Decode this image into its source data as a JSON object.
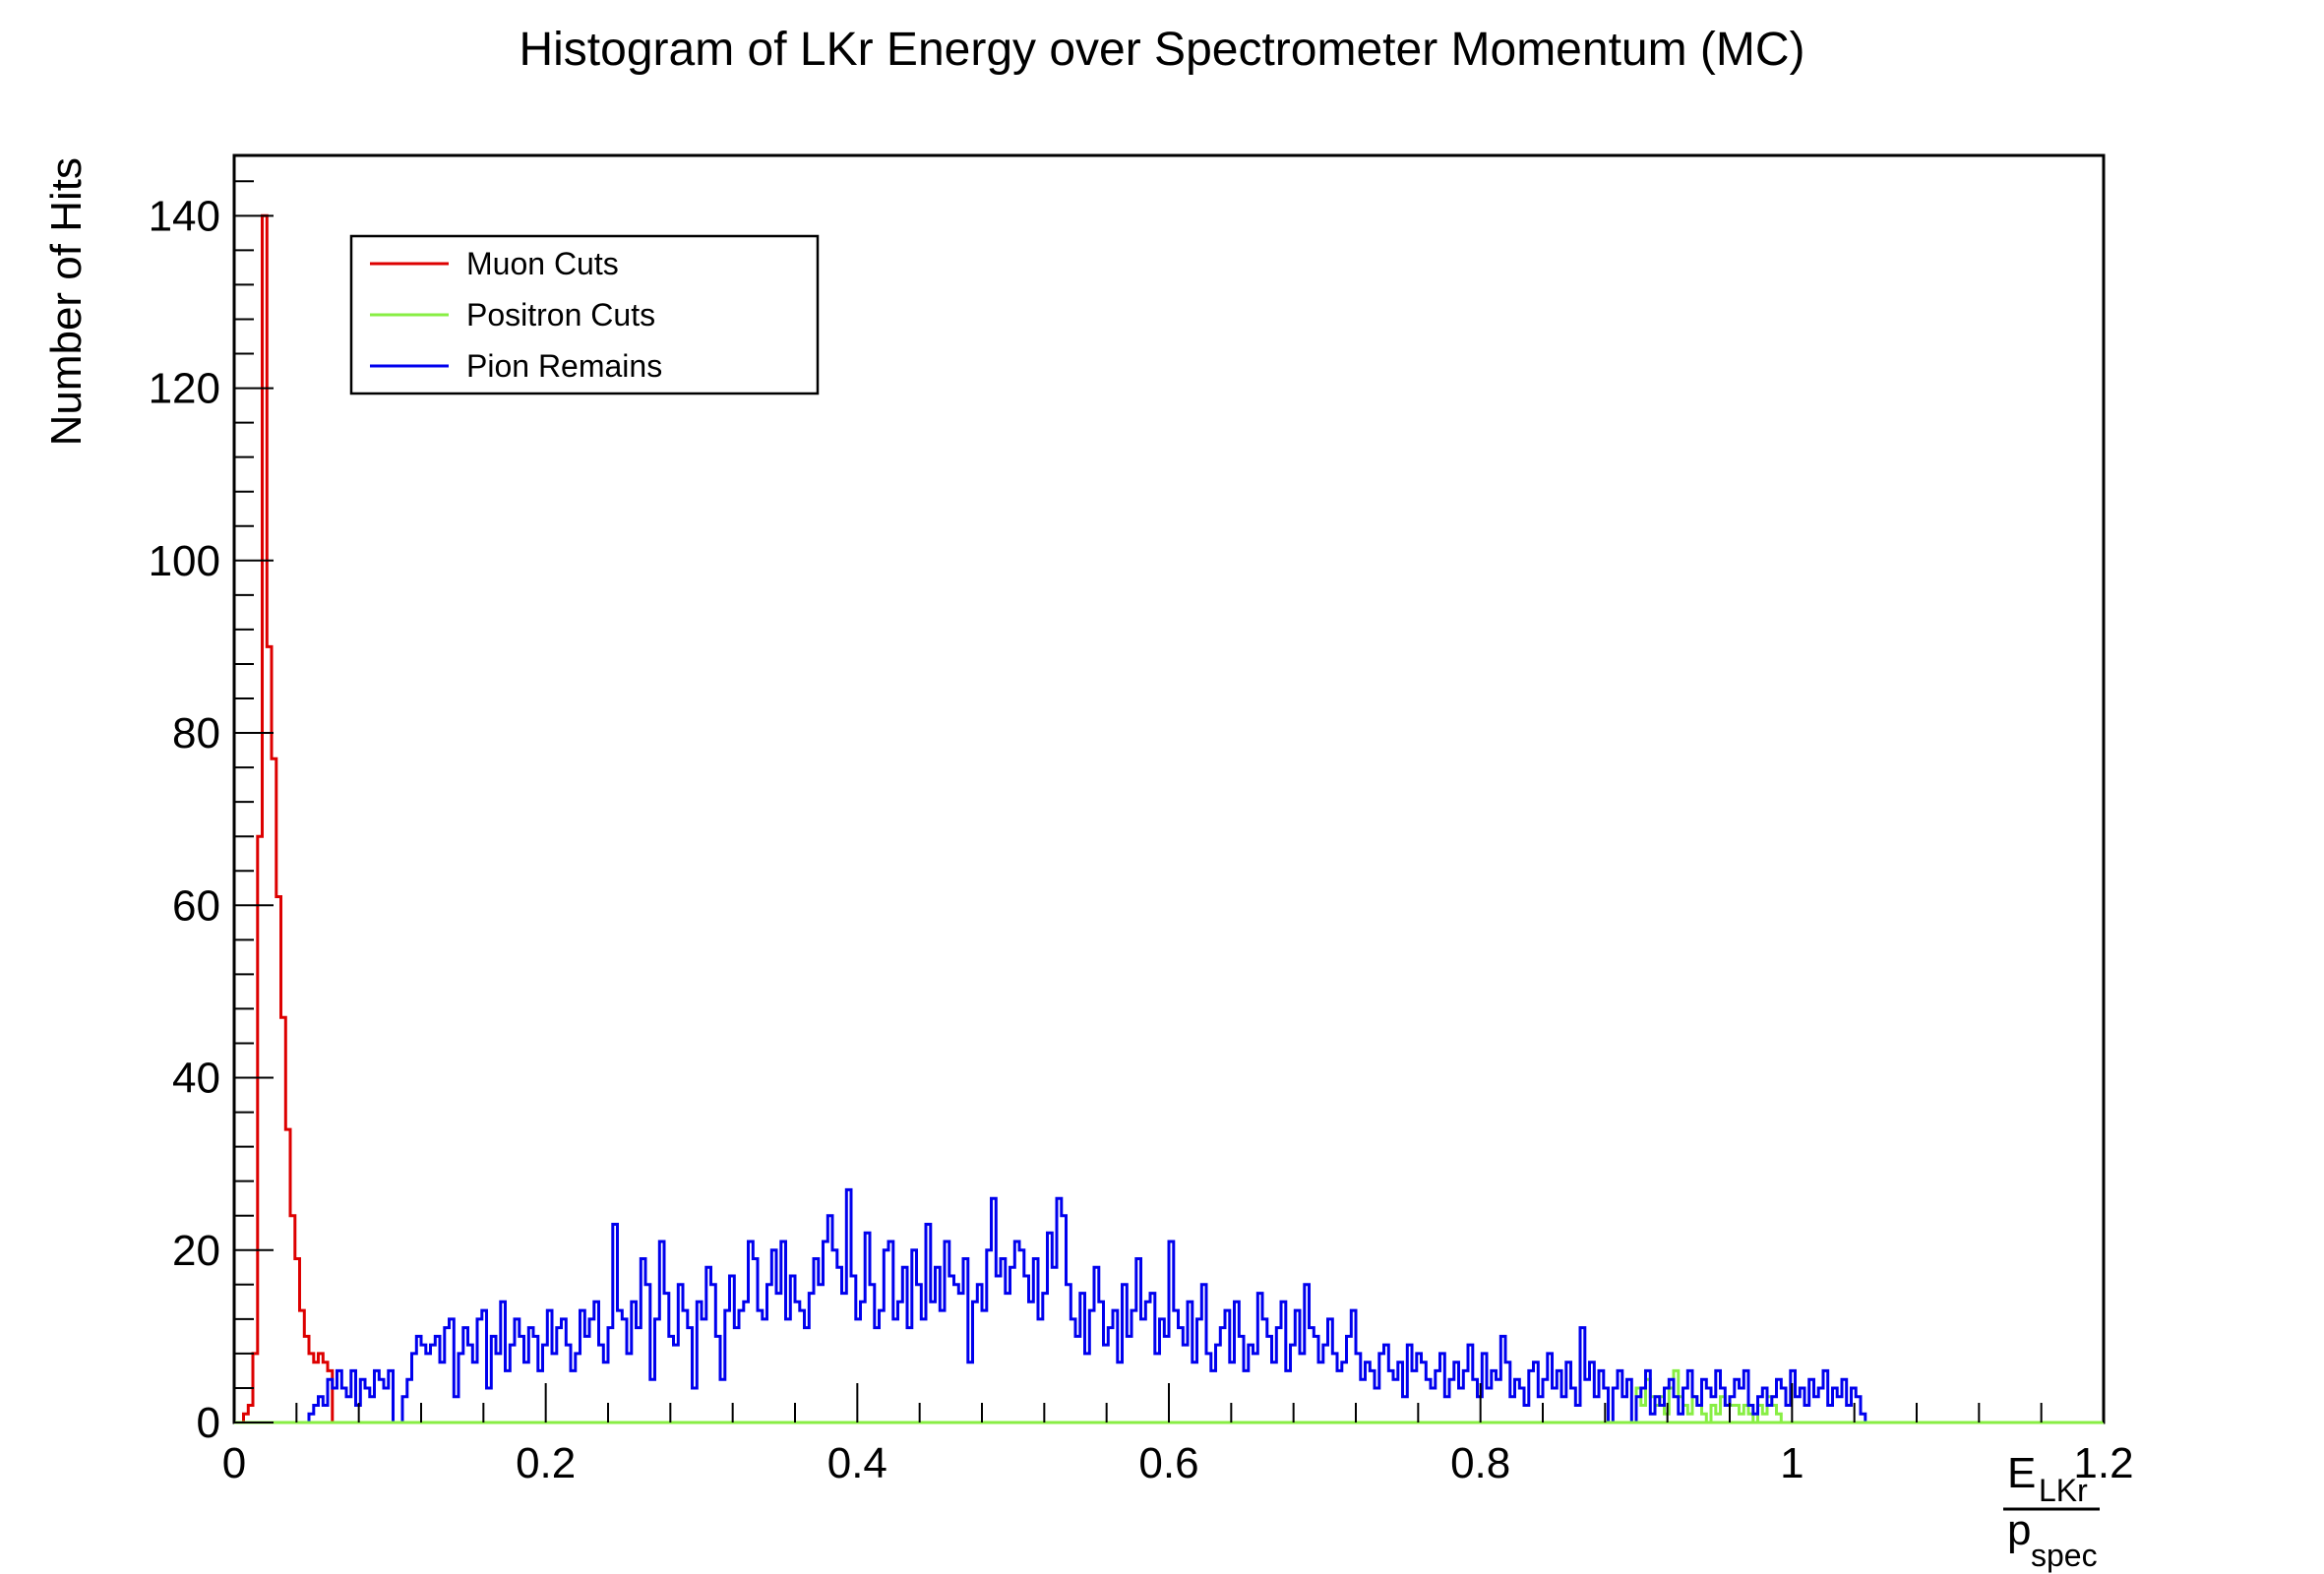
{
  "chart_data": {
    "type": "histogram",
    "title": "Histogram of LKr Energy over Spectrometer Momentum (MC)",
    "ylabel": "Number of Hits",
    "xlabel": {
      "numerator": "E",
      "numerator_sub": "LKr",
      "denominator": "p",
      "denominator_sub": "spec"
    },
    "xlim": [
      0,
      1.2
    ],
    "ylim": [
      0,
      147
    ],
    "x_ticks": [
      {
        "value": 0,
        "label": "0"
      },
      {
        "value": 0.2,
        "label": "0.2"
      },
      {
        "value": 0.4,
        "label": "0.4"
      },
      {
        "value": 0.6,
        "label": "0.6"
      },
      {
        "value": 0.8,
        "label": "0.8"
      },
      {
        "value": 1.0,
        "label": "1"
      },
      {
        "value": 1.2,
        "label": "1.2"
      }
    ],
    "y_ticks": [
      {
        "value": 0,
        "label": "0"
      },
      {
        "value": 20,
        "label": "20"
      },
      {
        "value": 40,
        "label": "40"
      },
      {
        "value": 60,
        "label": "60"
      },
      {
        "value": 80,
        "label": "80"
      },
      {
        "value": 100,
        "label": "100"
      },
      {
        "value": 120,
        "label": "120"
      },
      {
        "value": 140,
        "label": "140"
      }
    ],
    "legend_position": "top-left",
    "grid": false,
    "bin_width": 0.003,
    "series": [
      {
        "name": "Muon Cuts",
        "color": "#dd0000",
        "x_start": 0.003,
        "values": [
          0,
          1,
          2,
          8,
          68,
          140,
          90,
          77,
          61,
          47,
          34,
          24,
          19,
          13,
          10,
          8,
          7,
          8,
          7,
          6
        ]
      },
      {
        "name": "Positron Cuts",
        "color": "#88ee44",
        "x_start": 0.9,
        "values": [
          4,
          2,
          5,
          3,
          2,
          3,
          1,
          4,
          6,
          3,
          2,
          1,
          3,
          2,
          1,
          0,
          2,
          1,
          3,
          2,
          2,
          2,
          1,
          2,
          1,
          0,
          2,
          1,
          3,
          2,
          1,
          0,
          0
        ]
      },
      {
        "name": "Pion Remains",
        "color": "#0000ee",
        "x_start": 0.048,
        "values": [
          1,
          2,
          3,
          2,
          5,
          4,
          6,
          4,
          3,
          6,
          2,
          5,
          4,
          3,
          6,
          5,
          4,
          6,
          0,
          0,
          3,
          5,
          8,
          10,
          9,
          8,
          9,
          10,
          7,
          11,
          12,
          3,
          8,
          11,
          9,
          7,
          12,
          13,
          4,
          10,
          8,
          14,
          6,
          9,
          12,
          10,
          7,
          11,
          10,
          6,
          9,
          13,
          8,
          11,
          12,
          9,
          6,
          8,
          13,
          10,
          12,
          14,
          9,
          7,
          11,
          23,
          13,
          12,
          8,
          14,
          11,
          19,
          16,
          5,
          12,
          21,
          15,
          10,
          9,
          16,
          13,
          11,
          4,
          14,
          12,
          18,
          16,
          10,
          5,
          13,
          17,
          11,
          13,
          14,
          21,
          19,
          13,
          12,
          16,
          20,
          15,
          21,
          12,
          17,
          14,
          13,
          11,
          15,
          19,
          16,
          21,
          24,
          20,
          18,
          15,
          27,
          17,
          12,
          14,
          22,
          16,
          11,
          13,
          20,
          21,
          12,
          14,
          18,
          11,
          20,
          16,
          12,
          23,
          14,
          18,
          13,
          21,
          17,
          16,
          15,
          19,
          7,
          14,
          16,
          13,
          20,
          26,
          17,
          19,
          15,
          18,
          21,
          20,
          17,
          14,
          19,
          12,
          15,
          22,
          18,
          26,
          24,
          16,
          12,
          10,
          15,
          8,
          13,
          18,
          14,
          9,
          11,
          13,
          7,
          16,
          10,
          13,
          19,
          12,
          14,
          15,
          8,
          12,
          10,
          21,
          13,
          11,
          9,
          14,
          7,
          12,
          16,
          8,
          6,
          9,
          11,
          13,
          7,
          14,
          10,
          6,
          9,
          8,
          15,
          12,
          10,
          7,
          11,
          14,
          6,
          9,
          13,
          8,
          16,
          11,
          10,
          7,
          9,
          12,
          8,
          6,
          7,
          10,
          13,
          8,
          5,
          7,
          6,
          4,
          8,
          9,
          6,
          5,
          7,
          3,
          9,
          6,
          8,
          7,
          5,
          4,
          6,
          8,
          3,
          5,
          7,
          4,
          6,
          9,
          5,
          3,
          8,
          4,
          6,
          5,
          10,
          7,
          3,
          5,
          4,
          2,
          6,
          7,
          3,
          5,
          8,
          4,
          6,
          3,
          7,
          4,
          2,
          11,
          5,
          7,
          3,
          6,
          4,
          0,
          4,
          6,
          3,
          5,
          0,
          3,
          4,
          6,
          1,
          3,
          2,
          4,
          5,
          3,
          1,
          4,
          6,
          3,
          2,
          5,
          4,
          3,
          6,
          4,
          2,
          3,
          5,
          4,
          6,
          2,
          1,
          3,
          4,
          2,
          3,
          5,
          4,
          2,
          6,
          3,
          4,
          2,
          5,
          3,
          4,
          6,
          2,
          4,
          3,
          5,
          2,
          4,
          3,
          1,
          0,
          0,
          0,
          0,
          0,
          0,
          0,
          0,
          0,
          0,
          0,
          0,
          0,
          0,
          0,
          0,
          0
        ]
      }
    ]
  }
}
